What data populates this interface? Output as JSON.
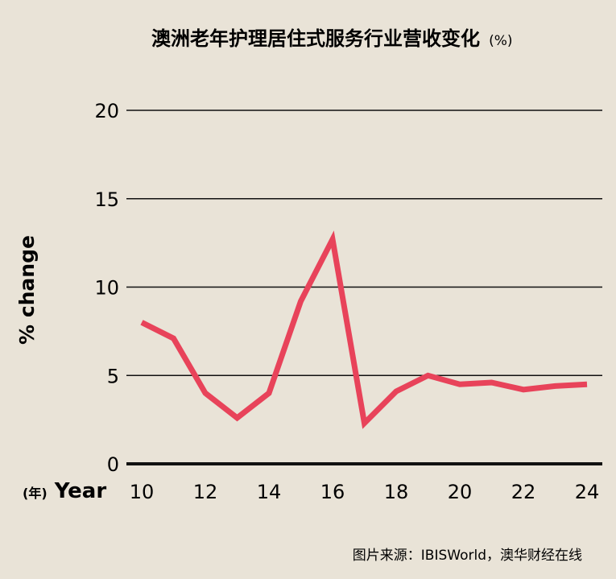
{
  "chart_data": {
    "type": "line",
    "title": "澳洲老年护理居住式服务行业营收变化",
    "title_unit": "(%)",
    "ylabel": "% change",
    "xlabel_prefix": "(年)",
    "xlabel": "Year",
    "x": [
      10,
      11,
      12,
      13,
      14,
      15,
      16,
      17,
      18,
      19,
      20,
      21,
      22,
      23,
      24
    ],
    "series": [
      {
        "values": [
          8.0,
          7.1,
          4.0,
          2.6,
          4.0,
          9.2,
          12.7,
          2.3,
          4.1,
          5.0,
          4.5,
          4.6,
          4.2,
          4.4,
          4.5
        ]
      }
    ],
    "xticks": [
      "10",
      "12",
      "14",
      "16",
      "18",
      "20",
      "22",
      "24"
    ],
    "yticks": [
      "0",
      "5",
      "10",
      "15",
      "20"
    ],
    "ylim": [
      0,
      20
    ],
    "xlim": [
      10,
      24
    ],
    "grid": true,
    "line_color": "#e8435a",
    "source": "图片来源：IBISWorld，澳华财经在线"
  }
}
